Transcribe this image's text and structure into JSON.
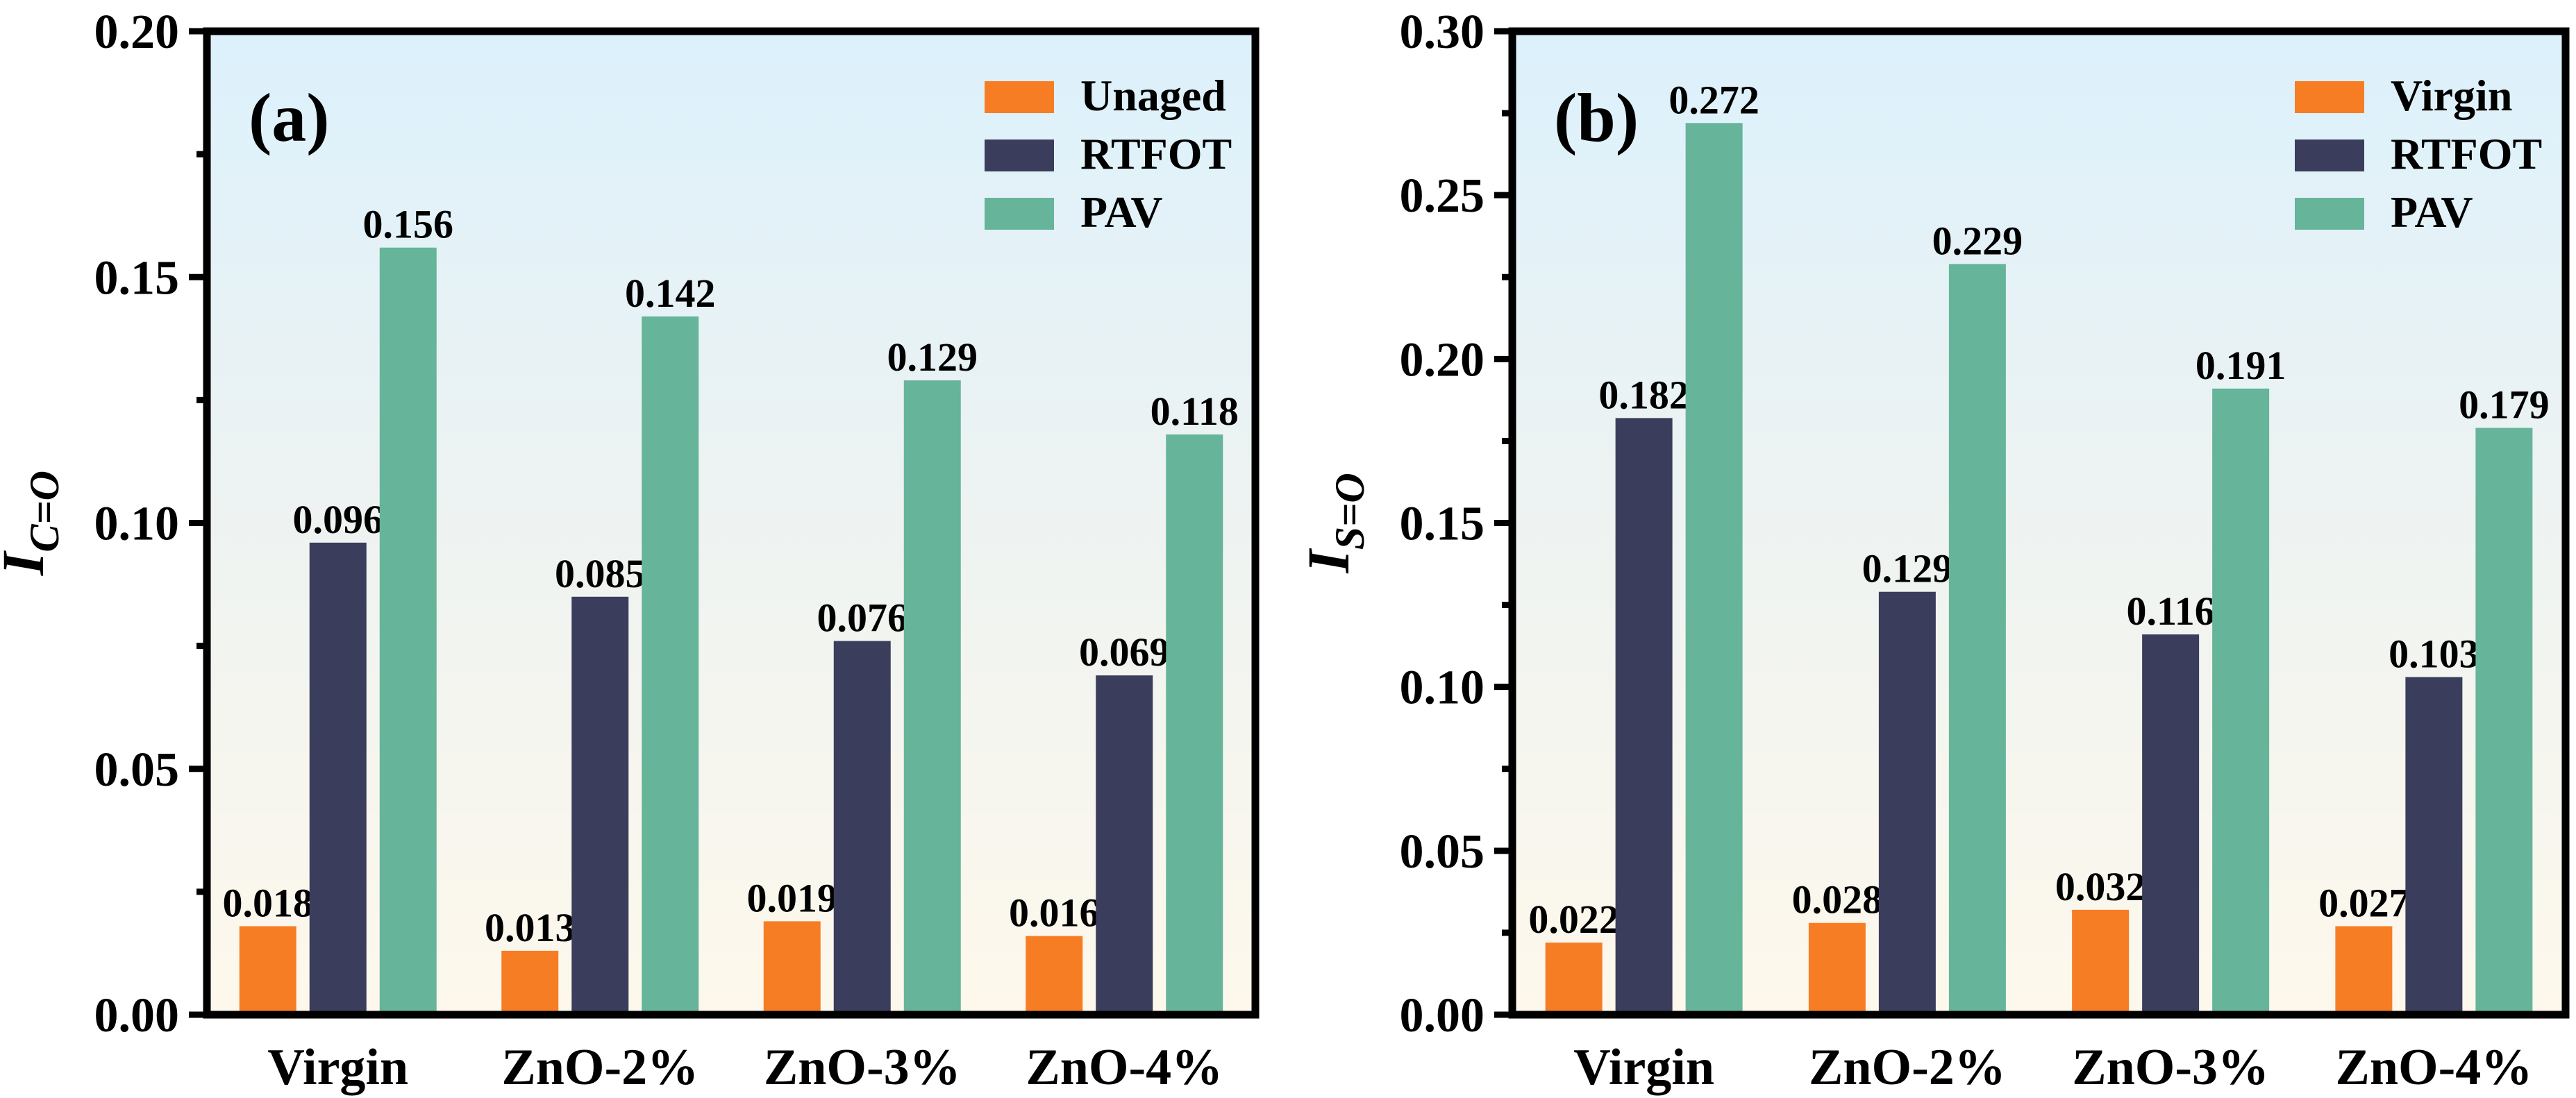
{
  "chart_data": [
    {
      "type": "bar",
      "panel_label": "(a)",
      "ylabel": "I",
      "ylabel_sub": "C=O",
      "ylim": [
        0,
        0.2
      ],
      "yticks": [
        "0.00",
        "0.05",
        "0.10",
        "0.15",
        "0.20"
      ],
      "ytick_values": [
        0,
        0.05,
        0.1,
        0.15,
        0.2
      ],
      "categories": [
        "Virgin",
        "ZnO-2%",
        "ZnO-3%",
        "ZnO-4%"
      ],
      "legend_position": "top-right",
      "series": [
        {
          "name": "Unaged",
          "color": "#F77D24",
          "values": [
            0.018,
            0.013,
            0.019,
            0.016
          ],
          "labels": [
            "0.018",
            "0.013",
            "0.019",
            "0.016"
          ]
        },
        {
          "name": "RTFOT",
          "color": "#3A3D5B",
          "values": [
            0.096,
            0.085,
            0.076,
            0.069
          ],
          "labels": [
            "0.096",
            "0.085",
            "0.076",
            "0.069"
          ]
        },
        {
          "name": "PAV",
          "color": "#66B49A",
          "values": [
            0.156,
            0.142,
            0.129,
            0.118
          ],
          "labels": [
            "0.156",
            "0.142",
            "0.129",
            "0.118"
          ]
        }
      ]
    },
    {
      "type": "bar",
      "panel_label": "(b)",
      "ylabel": "I",
      "ylabel_sub": "S=O",
      "ylim": [
        0,
        0.3
      ],
      "yticks": [
        "0.00",
        "0.05",
        "0.10",
        "0.15",
        "0.20",
        "0.25",
        "0.30"
      ],
      "ytick_values": [
        0,
        0.05,
        0.1,
        0.15,
        0.2,
        0.25,
        0.3
      ],
      "categories": [
        "Virgin",
        "ZnO-2%",
        "ZnO-3%",
        "ZnO-4%"
      ],
      "legend_position": "top-right",
      "series": [
        {
          "name": "Virgin",
          "color": "#F77D24",
          "values": [
            0.022,
            0.028,
            0.032,
            0.027
          ],
          "labels": [
            "0.022",
            "0.028",
            "0.032",
            "0.027"
          ]
        },
        {
          "name": "RTFOT",
          "color": "#3A3D5B",
          "values": [
            0.182,
            0.129,
            0.116,
            0.103
          ],
          "labels": [
            "0.182",
            "0.129",
            "0.116",
            "0.103"
          ]
        },
        {
          "name": "PAV",
          "color": "#66B49A",
          "values": [
            0.272,
            0.229,
            0.191,
            0.179
          ],
          "labels": [
            "0.272",
            "0.229",
            "0.191",
            "0.179"
          ]
        }
      ]
    }
  ]
}
